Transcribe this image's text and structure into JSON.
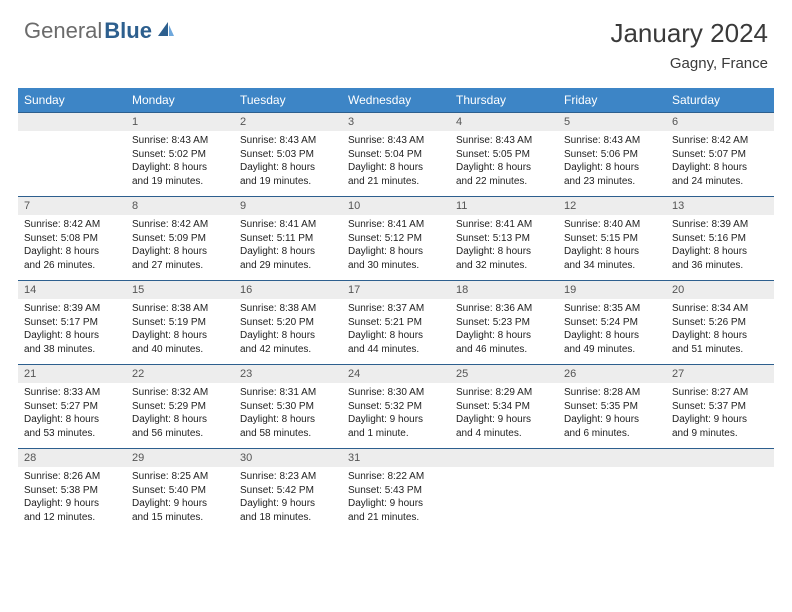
{
  "logo": {
    "part1": "General",
    "part2": "Blue",
    "color1": "#6b6b6b",
    "color2": "#2d5f8e",
    "icon_color": "#2d5f8e"
  },
  "title": "January 2024",
  "location": "Gagny, France",
  "colors": {
    "header_bg": "#3d85c6",
    "header_text": "#ffffff",
    "daynum_bg": "#ededed",
    "daynum_border": "#2d5f8e",
    "body_text": "#222222"
  },
  "dayNames": [
    "Sunday",
    "Monday",
    "Tuesday",
    "Wednesday",
    "Thursday",
    "Friday",
    "Saturday"
  ],
  "weeks": [
    [
      {
        "n": "",
        "lines": [
          "",
          "",
          "",
          ""
        ]
      },
      {
        "n": "1",
        "lines": [
          "Sunrise: 8:43 AM",
          "Sunset: 5:02 PM",
          "Daylight: 8 hours",
          "and 19 minutes."
        ]
      },
      {
        "n": "2",
        "lines": [
          "Sunrise: 8:43 AM",
          "Sunset: 5:03 PM",
          "Daylight: 8 hours",
          "and 19 minutes."
        ]
      },
      {
        "n": "3",
        "lines": [
          "Sunrise: 8:43 AM",
          "Sunset: 5:04 PM",
          "Daylight: 8 hours",
          "and 21 minutes."
        ]
      },
      {
        "n": "4",
        "lines": [
          "Sunrise: 8:43 AM",
          "Sunset: 5:05 PM",
          "Daylight: 8 hours",
          "and 22 minutes."
        ]
      },
      {
        "n": "5",
        "lines": [
          "Sunrise: 8:43 AM",
          "Sunset: 5:06 PM",
          "Daylight: 8 hours",
          "and 23 minutes."
        ]
      },
      {
        "n": "6",
        "lines": [
          "Sunrise: 8:42 AM",
          "Sunset: 5:07 PM",
          "Daylight: 8 hours",
          "and 24 minutes."
        ]
      }
    ],
    [
      {
        "n": "7",
        "lines": [
          "Sunrise: 8:42 AM",
          "Sunset: 5:08 PM",
          "Daylight: 8 hours",
          "and 26 minutes."
        ]
      },
      {
        "n": "8",
        "lines": [
          "Sunrise: 8:42 AM",
          "Sunset: 5:09 PM",
          "Daylight: 8 hours",
          "and 27 minutes."
        ]
      },
      {
        "n": "9",
        "lines": [
          "Sunrise: 8:41 AM",
          "Sunset: 5:11 PM",
          "Daylight: 8 hours",
          "and 29 minutes."
        ]
      },
      {
        "n": "10",
        "lines": [
          "Sunrise: 8:41 AM",
          "Sunset: 5:12 PM",
          "Daylight: 8 hours",
          "and 30 minutes."
        ]
      },
      {
        "n": "11",
        "lines": [
          "Sunrise: 8:41 AM",
          "Sunset: 5:13 PM",
          "Daylight: 8 hours",
          "and 32 minutes."
        ]
      },
      {
        "n": "12",
        "lines": [
          "Sunrise: 8:40 AM",
          "Sunset: 5:15 PM",
          "Daylight: 8 hours",
          "and 34 minutes."
        ]
      },
      {
        "n": "13",
        "lines": [
          "Sunrise: 8:39 AM",
          "Sunset: 5:16 PM",
          "Daylight: 8 hours",
          "and 36 minutes."
        ]
      }
    ],
    [
      {
        "n": "14",
        "lines": [
          "Sunrise: 8:39 AM",
          "Sunset: 5:17 PM",
          "Daylight: 8 hours",
          "and 38 minutes."
        ]
      },
      {
        "n": "15",
        "lines": [
          "Sunrise: 8:38 AM",
          "Sunset: 5:19 PM",
          "Daylight: 8 hours",
          "and 40 minutes."
        ]
      },
      {
        "n": "16",
        "lines": [
          "Sunrise: 8:38 AM",
          "Sunset: 5:20 PM",
          "Daylight: 8 hours",
          "and 42 minutes."
        ]
      },
      {
        "n": "17",
        "lines": [
          "Sunrise: 8:37 AM",
          "Sunset: 5:21 PM",
          "Daylight: 8 hours",
          "and 44 minutes."
        ]
      },
      {
        "n": "18",
        "lines": [
          "Sunrise: 8:36 AM",
          "Sunset: 5:23 PM",
          "Daylight: 8 hours",
          "and 46 minutes."
        ]
      },
      {
        "n": "19",
        "lines": [
          "Sunrise: 8:35 AM",
          "Sunset: 5:24 PM",
          "Daylight: 8 hours",
          "and 49 minutes."
        ]
      },
      {
        "n": "20",
        "lines": [
          "Sunrise: 8:34 AM",
          "Sunset: 5:26 PM",
          "Daylight: 8 hours",
          "and 51 minutes."
        ]
      }
    ],
    [
      {
        "n": "21",
        "lines": [
          "Sunrise: 8:33 AM",
          "Sunset: 5:27 PM",
          "Daylight: 8 hours",
          "and 53 minutes."
        ]
      },
      {
        "n": "22",
        "lines": [
          "Sunrise: 8:32 AM",
          "Sunset: 5:29 PM",
          "Daylight: 8 hours",
          "and 56 minutes."
        ]
      },
      {
        "n": "23",
        "lines": [
          "Sunrise: 8:31 AM",
          "Sunset: 5:30 PM",
          "Daylight: 8 hours",
          "and 58 minutes."
        ]
      },
      {
        "n": "24",
        "lines": [
          "Sunrise: 8:30 AM",
          "Sunset: 5:32 PM",
          "Daylight: 9 hours",
          "and 1 minute."
        ]
      },
      {
        "n": "25",
        "lines": [
          "Sunrise: 8:29 AM",
          "Sunset: 5:34 PM",
          "Daylight: 9 hours",
          "and 4 minutes."
        ]
      },
      {
        "n": "26",
        "lines": [
          "Sunrise: 8:28 AM",
          "Sunset: 5:35 PM",
          "Daylight: 9 hours",
          "and 6 minutes."
        ]
      },
      {
        "n": "27",
        "lines": [
          "Sunrise: 8:27 AM",
          "Sunset: 5:37 PM",
          "Daylight: 9 hours",
          "and 9 minutes."
        ]
      }
    ],
    [
      {
        "n": "28",
        "lines": [
          "Sunrise: 8:26 AM",
          "Sunset: 5:38 PM",
          "Daylight: 9 hours",
          "and 12 minutes."
        ]
      },
      {
        "n": "29",
        "lines": [
          "Sunrise: 8:25 AM",
          "Sunset: 5:40 PM",
          "Daylight: 9 hours",
          "and 15 minutes."
        ]
      },
      {
        "n": "30",
        "lines": [
          "Sunrise: 8:23 AM",
          "Sunset: 5:42 PM",
          "Daylight: 9 hours",
          "and 18 minutes."
        ]
      },
      {
        "n": "31",
        "lines": [
          "Sunrise: 8:22 AM",
          "Sunset: 5:43 PM",
          "Daylight: 9 hours",
          "and 21 minutes."
        ]
      },
      {
        "n": "",
        "lines": [
          "",
          "",
          "",
          ""
        ]
      },
      {
        "n": "",
        "lines": [
          "",
          "",
          "",
          ""
        ]
      },
      {
        "n": "",
        "lines": [
          "",
          "",
          "",
          ""
        ]
      }
    ]
  ]
}
